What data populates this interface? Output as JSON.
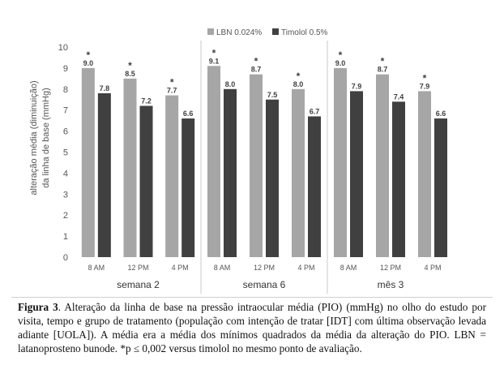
{
  "chart_data": {
    "type": "bar",
    "ylabel_lines": [
      "alteração média (diminuição)",
      "da linha de base (mmHg)"
    ],
    "ylim": [
      0,
      10
    ],
    "yticks": [
      "0",
      "1",
      "2",
      "3",
      "4",
      "5",
      "6",
      "7",
      "8",
      "9",
      "10"
    ],
    "legend": {
      "placement": "top",
      "entries": [
        "LBN 0.024%",
        "Timolol 0.5%"
      ]
    },
    "grid": false,
    "colors": {
      "lbn": "#a6a6a6",
      "timolol": "#404040"
    },
    "groups": [
      {
        "label": "semana 2",
        "categories": [
          "8 AM",
          "12 PM",
          "4 PM"
        ],
        "series": [
          {
            "name": "LBN 0.024%",
            "values": [
              9.0,
              8.5,
              7.7
            ],
            "labels": [
              "9.0",
              "8.5",
              "7.7"
            ],
            "marks": [
              "*",
              "*",
              "*"
            ]
          },
          {
            "name": "Timolol 0.5%",
            "values": [
              7.8,
              7.2,
              6.6
            ],
            "labels": [
              "7.8",
              "7.2",
              "6.6"
            ]
          }
        ]
      },
      {
        "label": "semana 6",
        "categories": [
          "8 AM",
          "12 PM",
          "4 PM"
        ],
        "series": [
          {
            "name": "LBN 0.024%",
            "values": [
              9.1,
              8.7,
              8.0
            ],
            "labels": [
              "9.1",
              "8.7",
              "8.0"
            ],
            "marks": [
              "*",
              "*",
              "*"
            ]
          },
          {
            "name": "Timolol 0.5%",
            "values": [
              8.0,
              7.5,
              6.7
            ],
            "labels": [
              "8.0",
              "7.5",
              "6.7"
            ]
          }
        ]
      },
      {
        "label": "mês 3",
        "categories": [
          "8 AM",
          "12 PM",
          "4 PM"
        ],
        "series": [
          {
            "name": "LBN 0.024%",
            "values": [
              9.0,
              8.7,
              7.9
            ],
            "labels": [
              "9.0",
              "8.7",
              "7.9"
            ],
            "marks": [
              "*",
              "*",
              "*"
            ]
          },
          {
            "name": "Timolol 0.5%",
            "values": [
              7.9,
              7.4,
              6.6
            ],
            "labels": [
              "7.9",
              "7.4",
              "6.6"
            ]
          }
        ]
      }
    ]
  },
  "caption": {
    "label": "Figura 3",
    "text": ". Alteração da linha de base na pressão intraocular média (PIO) (mmHg) no olho do estudo por visita, tempo e grupo de tratamento (população com intenção de tratar [IDT] com última observação levada adiante [UOLA]). A média era a média dos mínimos quadrados da média da alteração do PIO. LBN = latanoprosteno bunode. *p ≤ 0,002 versus timolol no mesmo ponto de avaliação."
  }
}
